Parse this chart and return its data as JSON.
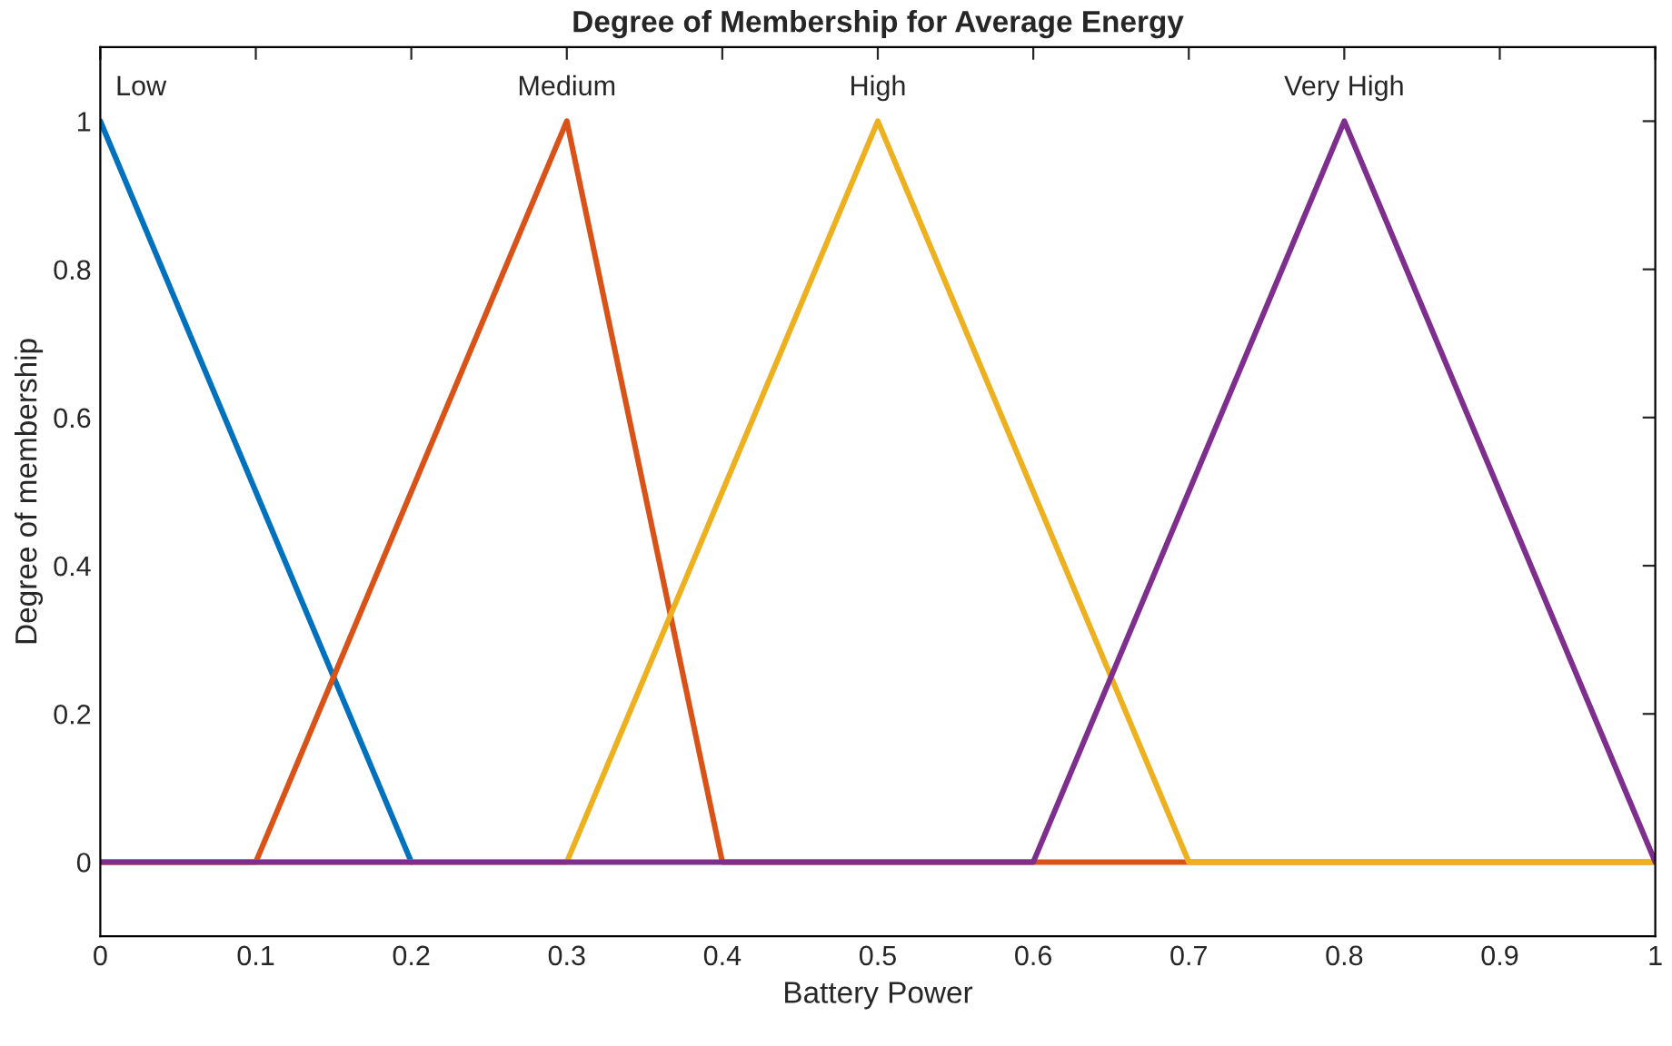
{
  "chart_data": {
    "type": "line",
    "title": "Degree of Membership for Average Energy",
    "xlabel": "Battery Power",
    "ylabel": "Degree of membership",
    "series": [
      {
        "name": "Low",
        "color": "#0072bd",
        "x": [
          0,
          0.2
        ],
        "values": [
          1,
          0
        ]
      },
      {
        "name": "Medium",
        "color": "#d95319",
        "x": [
          0,
          0.1,
          0.3,
          0.4,
          1
        ],
        "values": [
          0,
          0,
          1,
          0,
          0
        ]
      },
      {
        "name": "High",
        "color": "#edb120",
        "x": [
          0,
          0.3,
          0.5,
          0.7,
          1
        ],
        "values": [
          0,
          0,
          1,
          0,
          0
        ]
      },
      {
        "name": "Very High",
        "color": "#7e2f8e",
        "x": [
          0,
          0.6,
          0.8,
          1
        ],
        "values": [
          0,
          0,
          1,
          0
        ]
      }
    ],
    "xlim": [
      0,
      1
    ],
    "xticks": [
      0,
      0.1,
      0.2,
      0.3,
      0.4,
      0.5,
      0.6,
      0.7,
      0.8,
      0.9,
      1
    ],
    "ylim": [
      -0.1,
      1.1
    ],
    "yticks": [
      0,
      0.2,
      0.4,
      0.6,
      0.8,
      1
    ],
    "grid": false,
    "legend": false,
    "line_style": "solid",
    "marker": "none"
  }
}
